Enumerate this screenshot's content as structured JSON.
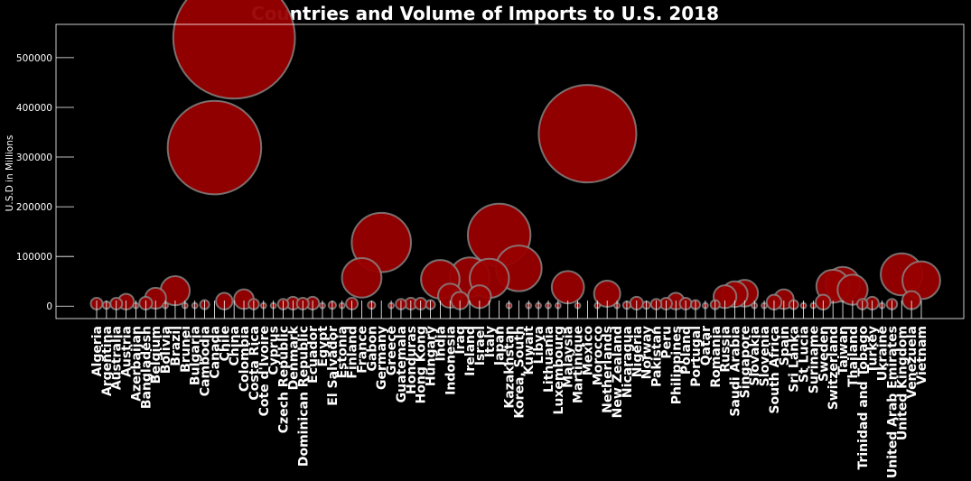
{
  "chart_data": {
    "type": "scatter",
    "title": "Countries and Volume of Imports to U.S. 2018",
    "xlabel": "",
    "ylabel": "U.S.D in Millions",
    "ylim": [
      -25000,
      567000
    ],
    "yticks": [
      0,
      100000,
      200000,
      300000,
      400000,
      500000
    ],
    "grid": false,
    "marker_color": "#990000",
    "categories": [
      "Algeria",
      "Argentina",
      "Australia",
      "Austria",
      "Azerbaijan",
      "Bangladesh",
      "Belgium",
      "Bolivia",
      "Brazil",
      "Brunei",
      "Bulgaria",
      "Cambodia",
      "Canada",
      "Chile",
      "China",
      "Colombia",
      "Costa Rica",
      "Cote d'Ivoire",
      "Cyprus",
      "Czech Republic",
      "Denmark",
      "Dominican Republic",
      "Ecuador",
      "Egypt",
      "El Salvador",
      "Estonia",
      "Finland",
      "France",
      "Gabon",
      "Germany",
      "Greece",
      "Guatemala",
      "Honduras",
      "Hong Kong",
      "Hungary",
      "India",
      "Indonesia",
      "Iraq",
      "Ireland",
      "Israel",
      "Italy",
      "Japan",
      "Kazakhstan",
      "Korea, South",
      "Kuwait",
      "Libya",
      "Lithuania",
      "Luxembourg",
      "Malaysia",
      "Martinique",
      "Mexico",
      "Morocco",
      "Netherlands",
      "New Zealand",
      "Nicaragua",
      "Nigeria",
      "Norway",
      "Pakistan",
      "Peru",
      "Philippines",
      "Poland",
      "Portugal",
      "Qatar",
      "Romania",
      "Russia",
      "Saudi Arabia",
      "Singapore",
      "Slovakia",
      "Slovenia",
      "South Africa",
      "Spain",
      "Sri Lanka",
      "St Lucia",
      "Suriname",
      "Sweden",
      "Switzerland",
      "Taiwan",
      "Thailand",
      "Trinidad and Tobago",
      "Turkey",
      "Ukraine",
      "United Arab Emirates",
      "United Kingdom",
      "Venezuela",
      "Vietnam"
    ],
    "values": [
      5000,
      2000,
      5000,
      9000,
      1000,
      6000,
      16000,
      1000,
      31000,
      1000,
      1000,
      3000,
      319000,
      10000,
      540000,
      14000,
      4000,
      1000,
      1000,
      4000,
      6000,
      5000,
      6000,
      1000,
      2000,
      1000,
      5000,
      57000,
      2000,
      128000,
      1000,
      4000,
      5000,
      5000,
      3000,
      54000,
      21000,
      11000,
      58000,
      19000,
      56000,
      143000,
      1000,
      76000,
      1000,
      1000,
      1000,
      1000,
      38000,
      1000,
      347000,
      1000,
      25000,
      1000,
      2000,
      6000,
      2000,
      4000,
      5000,
      10000,
      5000,
      3000,
      1000,
      3000,
      19000,
      24000,
      26000,
      1000,
      1000,
      8000,
      14000,
      3000,
      1000,
      1000,
      8000,
      40000,
      44000,
      33000,
      4000,
      6000,
      1000,
      4000,
      64000,
      12000,
      52000
    ]
  }
}
